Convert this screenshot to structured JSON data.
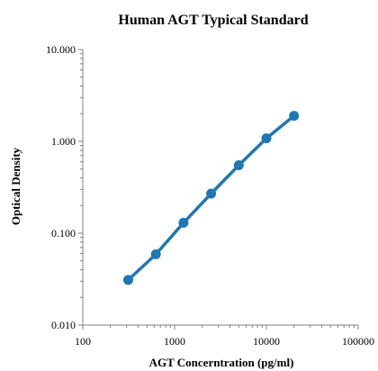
{
  "chart_data": {
    "type": "line",
    "title": "Human AGT Typical Standard",
    "xlabel": "AGT Concerntration (pg/ml)",
    "ylabel": "Optical Density",
    "x_scale": "log",
    "y_scale": "log",
    "xlim": [
      100,
      100000
    ],
    "ylim": [
      0.01,
      10
    ],
    "x_ticks": [
      100,
      1000,
      10000,
      100000
    ],
    "x_tick_labels": [
      "100",
      "1000",
      "10000",
      "100000"
    ],
    "y_ticks": [
      0.01,
      0.1,
      1,
      10
    ],
    "y_tick_labels": [
      "0.010",
      "0.100",
      "1.000",
      "10.000"
    ],
    "grid": false,
    "legend": "none",
    "series": [
      {
        "color": "#1f77b4",
        "marker": "circle",
        "x": [
          312.5,
          625,
          1250,
          2500,
          5000,
          10000,
          20000
        ],
        "y": [
          0.031,
          0.059,
          0.13,
          0.27,
          0.55,
          1.08,
          1.9
        ]
      }
    ]
  }
}
